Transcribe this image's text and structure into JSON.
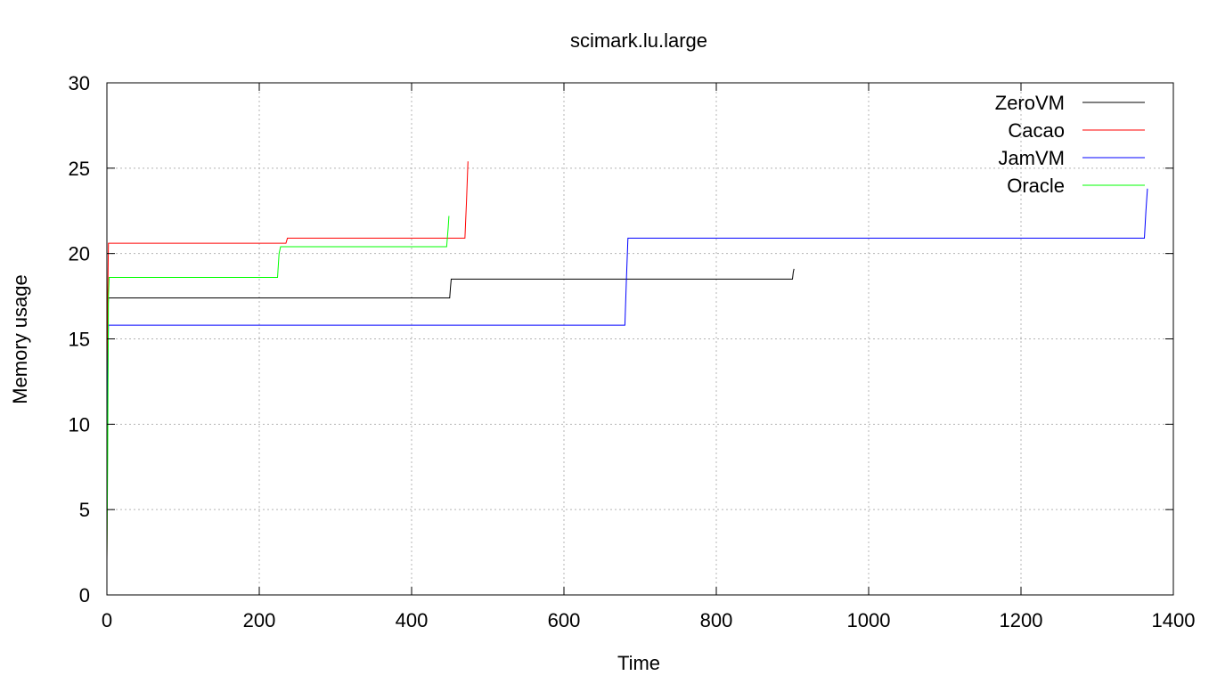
{
  "chart_data": {
    "type": "line",
    "title": "scimark.lu.large",
    "xlabel": "Time",
    "ylabel": "Memory usage",
    "xlim": [
      0,
      1400
    ],
    "ylim": [
      0,
      30
    ],
    "xticks": [
      0,
      200,
      400,
      600,
      800,
      1000,
      1200,
      1400
    ],
    "yticks": [
      0,
      5,
      10,
      15,
      20,
      25,
      30
    ],
    "grid": true,
    "legend_position": "top-right",
    "series": [
      {
        "name": "ZeroVM",
        "color": "#000000",
        "x": [
          0,
          0.5,
          1,
          2,
          3,
          450,
          451,
          452,
          900,
          901,
          902
        ],
        "y": [
          2,
          8,
          16,
          17.4,
          17.4,
          17.4,
          18,
          18.5,
          18.5,
          18.9,
          19.1
        ]
      },
      {
        "name": "Cacao",
        "color": "#ff0000",
        "x": [
          0,
          0.5,
          1,
          2,
          3,
          235,
          237,
          470,
          472,
          474
        ],
        "y": [
          2,
          7,
          17,
          20.6,
          20.6,
          20.6,
          20.9,
          20.9,
          23,
          25.4
        ]
      },
      {
        "name": "JamVM",
        "color": "#0000ff",
        "x": [
          0,
          1,
          2,
          3,
          680,
          682,
          684,
          1362,
          1364,
          1366
        ],
        "y": [
          6.7,
          12,
          15.8,
          15.8,
          15.8,
          18.5,
          20.9,
          20.9,
          22.5,
          23.8
        ]
      },
      {
        "name": "Oracle",
        "color": "#00ff00",
        "x": [
          0,
          1,
          2,
          3,
          224,
          226,
          228,
          446,
          448,
          449
        ],
        "y": [
          2.2,
          8,
          17.5,
          18.6,
          18.6,
          20,
          20.4,
          20.4,
          21.5,
          22.2
        ]
      }
    ]
  }
}
